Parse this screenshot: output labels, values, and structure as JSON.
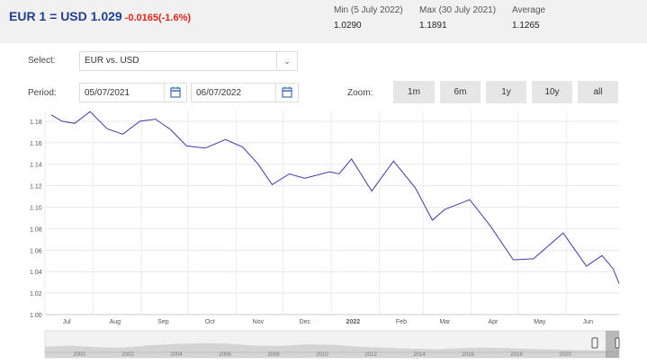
{
  "header": {
    "pair": "EUR 1 = USD 1.029",
    "change": "-0.0165(-1.6%)",
    "min_label": "Min (5 July 2022)",
    "min_value": "1.0290",
    "max_label": "Max (30 July 2021)",
    "max_value": "1.1891",
    "avg_label": "Average",
    "avg_value": "1.1265"
  },
  "controls": {
    "select_label": "Select:",
    "select_value": "EUR vs. USD",
    "period_label": "Period:",
    "date_from": "05/07/2021",
    "date_to": "06/07/2022",
    "zoom_label": "Zoom:",
    "zoom_buttons": [
      "1m",
      "6m",
      "1y",
      "10y",
      "all"
    ]
  },
  "colors": {
    "line": "#3b3ba8",
    "accent": "#1f3f8f",
    "negative": "#e2231a"
  },
  "icons": {
    "select": "chevron-down-icon",
    "date": "calendar-icon"
  },
  "chart_data": {
    "type": "line",
    "y_ticks": [
      "1.00",
      "1.02",
      "1.04",
      "1.06",
      "1.08",
      "1.10",
      "1.12",
      "1.14",
      "1.16",
      "1.18"
    ],
    "ylim": [
      1.0,
      1.19
    ],
    "x_ticks": [
      "Jul",
      "Aug",
      "Sep",
      "Oct",
      "Nov",
      "Dec",
      "2022",
      "Feb",
      "Mar",
      "Apr",
      "May",
      "Jun"
    ],
    "series": [
      {
        "values": [
          [
            "2021-07-05",
            1.186
          ],
          [
            "2021-07-12",
            1.18
          ],
          [
            "2021-07-20",
            1.178
          ],
          [
            "2021-07-30",
            1.189
          ],
          [
            "2021-08-10",
            1.173
          ],
          [
            "2021-08-20",
            1.168
          ],
          [
            "2021-08-31",
            1.18
          ],
          [
            "2021-09-10",
            1.182
          ],
          [
            "2021-09-20",
            1.172
          ],
          [
            "2021-09-30",
            1.157
          ],
          [
            "2021-10-12",
            1.155
          ],
          [
            "2021-10-25",
            1.163
          ],
          [
            "2021-11-05",
            1.156
          ],
          [
            "2021-11-15",
            1.14
          ],
          [
            "2021-11-24",
            1.121
          ],
          [
            "2021-12-05",
            1.131
          ],
          [
            "2021-12-15",
            1.127
          ],
          [
            "2021-12-31",
            1.133
          ],
          [
            "2022-01-06",
            1.131
          ],
          [
            "2022-01-14",
            1.145
          ],
          [
            "2022-01-27",
            1.115
          ],
          [
            "2022-02-10",
            1.143
          ],
          [
            "2022-02-24",
            1.118
          ],
          [
            "2022-03-07",
            1.088
          ],
          [
            "2022-03-15",
            1.098
          ],
          [
            "2022-03-31",
            1.107
          ],
          [
            "2022-04-13",
            1.083
          ],
          [
            "2022-04-28",
            1.051
          ],
          [
            "2022-05-11",
            1.052
          ],
          [
            "2022-05-30",
            1.076
          ],
          [
            "2022-06-14",
            1.045
          ],
          [
            "2022-06-24",
            1.055
          ],
          [
            "2022-07-01",
            1.043
          ],
          [
            "2022-07-05",
            1.029
          ]
        ]
      }
    ],
    "navigator_ticks": [
      "2000",
      "2002",
      "2004",
      "2006",
      "2008",
      "2010",
      "2012",
      "2014",
      "2016",
      "2018",
      "2020",
      "2022"
    ],
    "grid": true
  }
}
